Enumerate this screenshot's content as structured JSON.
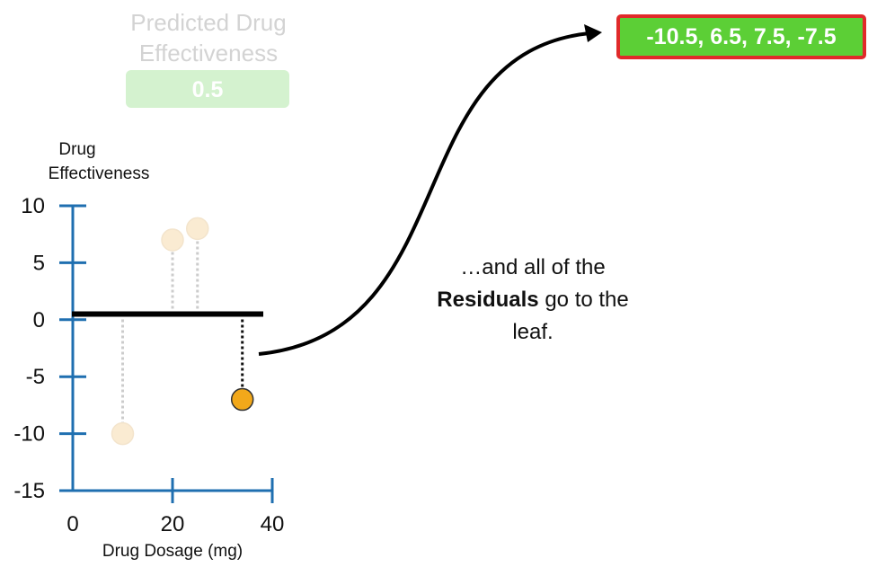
{
  "predicted_label": "Predicted Drug Effectiveness",
  "predicted_value": "0.5",
  "leaf_residuals": "-10.5, 6.5, 7.5, -7.5",
  "caption": {
    "line1": "…and all of the",
    "bold": "Residuals",
    "line2_rest": " go to the",
    "line3": "leaf."
  },
  "chart_data": {
    "type": "scatter",
    "xlabel": "Drug Dosage (mg)",
    "ylabel": "Drug Effectiveness",
    "xlim": [
      0,
      40
    ],
    "ylim": [
      -15,
      10
    ],
    "x_ticks": [
      0,
      20,
      40
    ],
    "y_ticks": [
      10,
      5,
      0,
      -5,
      -10,
      -15
    ],
    "prediction_line": 0.5,
    "points": [
      {
        "x": 10,
        "y": -10,
        "highlighted": false
      },
      {
        "x": 20,
        "y": 7,
        "highlighted": false
      },
      {
        "x": 25,
        "y": 8,
        "highlighted": false
      },
      {
        "x": 34,
        "y": -7,
        "highlighted": true
      }
    ]
  },
  "colors": {
    "axis": "#1f6fb0",
    "faded_point": "#faebd2",
    "highlight_point": "#f2a81a",
    "leaf_fill": "#5ccf36",
    "leaf_border": "#e02a2a"
  }
}
